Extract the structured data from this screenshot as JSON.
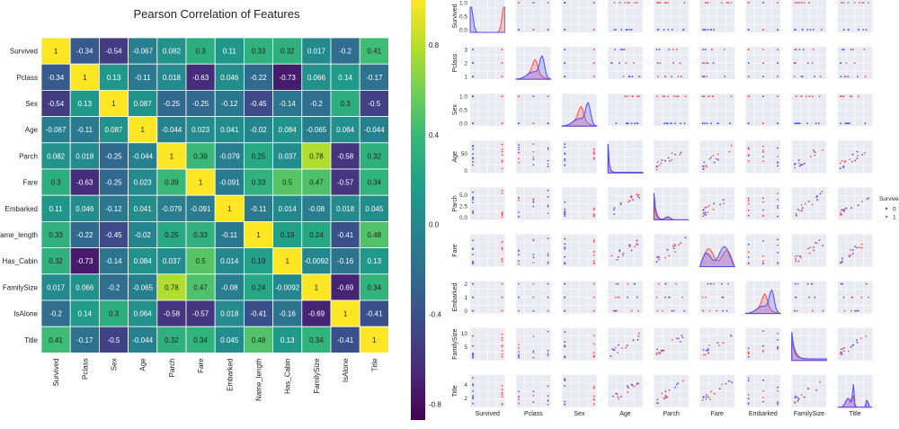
{
  "heatmap": {
    "title": "Pearson Correlation of Features",
    "labels": [
      "Survived",
      "Pclass",
      "Sex",
      "Age",
      "Parch",
      "Fare",
      "Embarked",
      "Name_length",
      "Has_Cabin",
      "FamilySize",
      "IsAlone",
      "Title"
    ],
    "cell_text": [
      [
        "1",
        "-0.34",
        "-0.54",
        "-0.067",
        "0.082",
        "0.3",
        "0.11",
        "0.33",
        "0.32",
        "0.017",
        "-0.2",
        "0.41"
      ],
      [
        "-0.34",
        "1",
        "0.13",
        "-0.11",
        "0.018",
        "-0.63",
        "0.046",
        "-0.22",
        "-0.73",
        "0.066",
        "0.14",
        "-0.17"
      ],
      [
        "-0.54",
        "0.13",
        "1",
        "0.087",
        "-0.25",
        "-0.25",
        "-0.12",
        "-0.45",
        "-0.14",
        "-0.2",
        "0.3",
        "-0.5"
      ],
      [
        "-0.067",
        "-0.11",
        "0.087",
        "1",
        "-0.044",
        "0.023",
        "0.041",
        "-0.02",
        "0.084",
        "-0.065",
        "0.064",
        "-0.044"
      ],
      [
        "0.082",
        "0.018",
        "-0.25",
        "-0.044",
        "1",
        "0.39",
        "-0.079",
        "0.25",
        "0.037",
        "0.78",
        "-0.58",
        "0.32"
      ],
      [
        "0.3",
        "-0.63",
        "-0.25",
        "0.023",
        "0.39",
        "1",
        "-0.091",
        "0.33",
        "0.5",
        "0.47",
        "-0.57",
        "0.34"
      ],
      [
        "0.11",
        "0.046",
        "-0.12",
        "0.041",
        "-0.079",
        "-0.091",
        "1",
        "-0.11",
        "0.014",
        "-0.08",
        "0.018",
        "0.045"
      ],
      [
        "0.33",
        "-0.22",
        "-0.45",
        "-0.02",
        "0.25",
        "0.33",
        "-0.11",
        "1",
        "0.19",
        "0.24",
        "-0.41",
        "0.48"
      ],
      [
        "0.32",
        "-0.73",
        "-0.14",
        "0.084",
        "0.037",
        "0.5",
        "0.014",
        "0.19",
        "1",
        "-0.0092",
        "-0.16",
        "0.13"
      ],
      [
        "0.017",
        "0.066",
        "-0.2",
        "-0.065",
        "0.78",
        "0.47",
        "-0.08",
        "0.24",
        "-0.0092",
        "1",
        "-0.69",
        "0.34"
      ],
      [
        "-0.2",
        "0.14",
        "0.3",
        "0.064",
        "-0.58",
        "-0.57",
        "0.018",
        "-0.41",
        "-0.16",
        "-0.69",
        "1",
        "-0.41"
      ],
      [
        "0.41",
        "-0.17",
        "-0.5",
        "-0.044",
        "0.32",
        "0.34",
        "0.045",
        "0.48",
        "0.13",
        "0.34",
        "-0.41",
        "1"
      ]
    ],
    "colorbar_ticks": [
      "0.8",
      "0.4",
      "0.0",
      "-0.4",
      "-0.8"
    ],
    "colorbar_values": [
      0.8,
      0.4,
      0.0,
      -0.4,
      -0.8
    ],
    "vmin": -0.87,
    "vmax": 1.0,
    "colors": {
      "viridis": [
        "#440154",
        "#482878",
        "#3e4989",
        "#31688e",
        "#26828e",
        "#1f9e89",
        "#35b779",
        "#6ece58",
        "#b5de2b",
        "#fde725"
      ],
      "gridline": "#ffffff"
    }
  },
  "pairplot": {
    "variables": [
      "Survived",
      "Pclass",
      "Sex",
      "Age",
      "Parch",
      "Fare",
      "Embarked",
      "FamilySize",
      "Title"
    ],
    "y_ticks": [
      [
        "0.0",
        "0.5",
        "1.0"
      ],
      [
        "1",
        "2",
        "3"
      ],
      [
        "0.0",
        "0.5",
        "1.0"
      ],
      [
        "0",
        "50"
      ],
      [
        "0.0",
        "2.5",
        "5.0"
      ],
      [],
      [
        "0",
        "1",
        "2"
      ],
      [
        "5",
        "10"
      ],
      [
        "2",
        "4"
      ]
    ],
    "y_tick_values": [
      [
        0,
        0.5,
        1
      ],
      [
        1,
        2,
        3
      ],
      [
        0,
        0.5,
        1
      ],
      [
        0,
        50
      ],
      [
        0,
        2.5,
        5
      ],
      [],
      [
        0,
        1,
        2
      ],
      [
        5,
        10
      ],
      [
        2,
        4
      ]
    ],
    "ranges": [
      [
        0,
        1
      ],
      [
        1,
        3
      ],
      [
        0,
        1
      ],
      [
        0,
        80
      ],
      [
        0,
        6
      ],
      [
        0,
        4
      ],
      [
        0,
        2
      ],
      [
        1,
        11
      ],
      [
        1,
        5
      ]
    ],
    "legend": {
      "title": "Survived",
      "labels": [
        "0",
        "1"
      ]
    },
    "colors": {
      "class0": "#4c4cff",
      "class1": "#ff4c4c",
      "panel_bg": "#eaeaf2",
      "grid": "#ffffff"
    }
  },
  "chart_data": [
    {
      "type": "heatmap",
      "title": "Pearson Correlation of Features",
      "xlabels": [
        "Survived",
        "Pclass",
        "Sex",
        "Age",
        "Parch",
        "Fare",
        "Embarked",
        "Name_length",
        "Has_Cabin",
        "FamilySize",
        "IsAlone",
        "Title"
      ],
      "ylabels": [
        "Survived",
        "Pclass",
        "Sex",
        "Age",
        "Parch",
        "Fare",
        "Embarked",
        "Name_length",
        "Has_Cabin",
        "FamilySize",
        "IsAlone",
        "Title"
      ],
      "values": [
        [
          1,
          -0.34,
          -0.54,
          -0.067,
          0.082,
          0.3,
          0.11,
          0.33,
          0.32,
          0.017,
          -0.2,
          0.41
        ],
        [
          -0.34,
          1,
          0.13,
          -0.11,
          0.018,
          -0.63,
          0.046,
          -0.22,
          -0.73,
          0.066,
          0.14,
          -0.17
        ],
        [
          -0.54,
          0.13,
          1,
          0.087,
          -0.25,
          -0.25,
          -0.12,
          -0.45,
          -0.14,
          -0.2,
          0.3,
          -0.5
        ],
        [
          -0.067,
          -0.11,
          0.087,
          1,
          -0.044,
          0.023,
          0.041,
          -0.02,
          0.084,
          -0.065,
          0.064,
          -0.044
        ],
        [
          0.082,
          0.018,
          -0.25,
          -0.044,
          1,
          0.39,
          -0.079,
          0.25,
          0.037,
          0.78,
          -0.58,
          0.32
        ],
        [
          0.3,
          -0.63,
          -0.25,
          0.023,
          0.39,
          1,
          -0.091,
          0.33,
          0.5,
          0.47,
          -0.57,
          0.34
        ],
        [
          0.11,
          0.046,
          -0.12,
          0.041,
          -0.079,
          -0.091,
          1,
          -0.11,
          0.014,
          -0.08,
          0.018,
          0.045
        ],
        [
          0.33,
          -0.22,
          -0.45,
          -0.02,
          0.25,
          0.33,
          -0.11,
          1,
          0.19,
          0.24,
          -0.41,
          0.48
        ],
        [
          0.32,
          -0.73,
          -0.14,
          0.084,
          0.037,
          0.5,
          0.014,
          0.19,
          1,
          -0.0092,
          -0.16,
          0.13
        ],
        [
          0.017,
          0.066,
          -0.2,
          -0.065,
          0.78,
          0.47,
          -0.08,
          0.24,
          -0.0092,
          1,
          -0.69,
          0.34
        ],
        [
          -0.2,
          0.14,
          0.3,
          0.064,
          -0.58,
          -0.57,
          0.018,
          -0.41,
          -0.16,
          -0.69,
          1,
          -0.41
        ],
        [
          0.41,
          -0.17,
          -0.5,
          -0.044,
          0.32,
          0.34,
          0.045,
          0.48,
          0.13,
          0.34,
          -0.41,
          1
        ]
      ],
      "colorbar": {
        "range": [
          -0.87,
          1.0
        ],
        "ticks": [
          0.8,
          0.4,
          0.0,
          -0.4,
          -0.8
        ],
        "colormap": "viridis"
      },
      "annotated": true
    },
    {
      "type": "scatter",
      "subtype": "pairplot",
      "variables": [
        "Survived",
        "Pclass",
        "Sex",
        "Age",
        "Parch",
        "Fare",
        "Embarked",
        "FamilySize",
        "Title"
      ],
      "hue": "Survived",
      "hue_levels": [
        "0",
        "1"
      ],
      "diagonal": "kde"
    }
  ]
}
